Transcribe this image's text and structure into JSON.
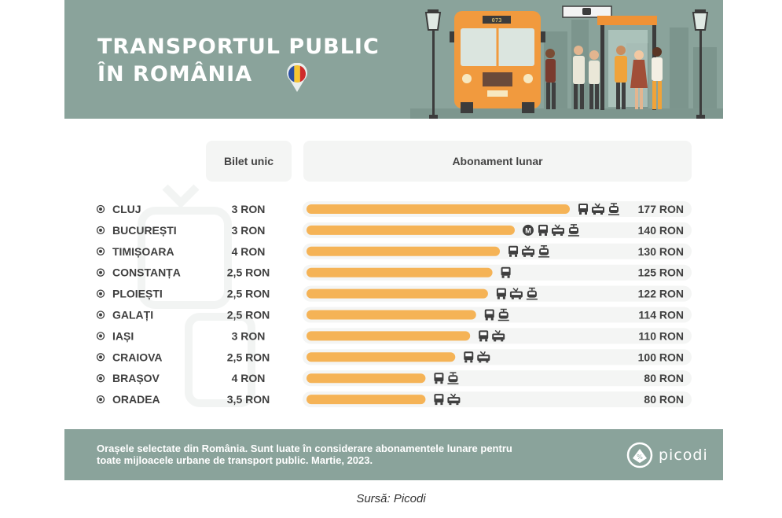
{
  "header": {
    "title_line1": "TRANSPORTUL PUBLIC",
    "title_line2": "ÎN ROMÂNIA",
    "bus_number": "073"
  },
  "columns": {
    "single": "Bilet unic",
    "monthly": "Abonament lunar"
  },
  "colors": {
    "banner": "#8aa39b",
    "bar": "#f5b356",
    "row_track": "#f4f5f4",
    "text": "#3f3f3f"
  },
  "chart_data": {
    "type": "bar",
    "orientation": "horizontal",
    "categories": [
      "CLUJ",
      "BUCUREȘTI",
      "TIMIȘOARA",
      "CONSTANȚA",
      "PLOIEȘTI",
      "GALAȚI",
      "IAȘI",
      "CRAIOVA",
      "BRAȘOV",
      "ORADEA"
    ],
    "single_ticket": [
      "3 RON",
      "3 RON",
      "4 RON",
      "2,5 RON",
      "2,5 RON",
      "2,5 RON",
      "3 RON",
      "2,5 RON",
      "4 RON",
      "3,5 RON"
    ],
    "values": [
      177,
      140,
      130,
      125,
      122,
      114,
      110,
      100,
      80,
      80
    ],
    "value_labels": [
      "177 RON",
      "140 RON",
      "130 RON",
      "125 RON",
      "122 RON",
      "114 RON",
      "110 RON",
      "100 RON",
      "80 RON",
      "80 RON"
    ],
    "transport_modes": [
      [
        "bus",
        "trolleybus",
        "tram"
      ],
      [
        "metro",
        "bus",
        "trolleybus",
        "tram"
      ],
      [
        "bus",
        "trolleybus",
        "tram"
      ],
      [
        "bus"
      ],
      [
        "bus",
        "trolleybus",
        "tram"
      ],
      [
        "bus",
        "tram"
      ],
      [
        "bus",
        "trolleybus"
      ],
      [
        "bus",
        "trolleybus"
      ],
      [
        "bus",
        "tram"
      ],
      [
        "bus",
        "trolleybus"
      ]
    ],
    "xlim": [
      0,
      177
    ]
  },
  "footer": {
    "note": "Orașele selectate din România. Sunt luate în considerare abonamentele lunare pentru toate mijloacele urbane de transport public. Martie, 2023.",
    "brand": "picodi"
  },
  "source": "Sursă: Picodi"
}
